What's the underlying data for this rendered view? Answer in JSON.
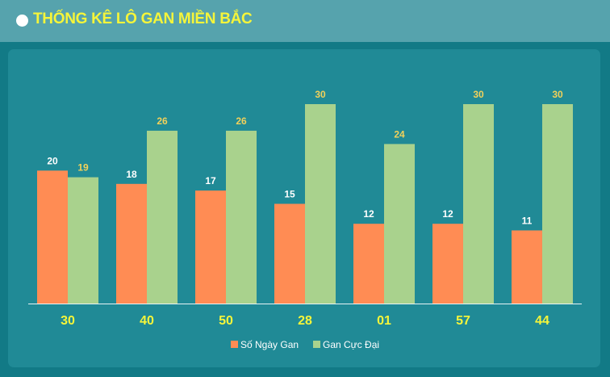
{
  "header": {
    "title": "THỐNG KÊ LÔ GAN MIỀN BẮC"
  },
  "colors": {
    "series_a": "#ff8c54",
    "series_b": "#a9d28d",
    "label_a": "#ffffff",
    "label_b": "#f2d15a",
    "category": "#f5f53a",
    "legend_text": "#ffffff"
  },
  "chart_data": {
    "type": "bar",
    "categories": [
      "30",
      "40",
      "50",
      "28",
      "01",
      "57",
      "44"
    ],
    "series": [
      {
        "name": "Số Ngày Gan",
        "values": [
          20,
          18,
          17,
          15,
          12,
          12,
          11
        ]
      },
      {
        "name": "Gan Cực Đại",
        "values": [
          19,
          26,
          26,
          30,
          24,
          30,
          30
        ]
      }
    ],
    "ylim": [
      0,
      30
    ],
    "grid": false,
    "legend": "bottom-center",
    "data_labels": true
  }
}
